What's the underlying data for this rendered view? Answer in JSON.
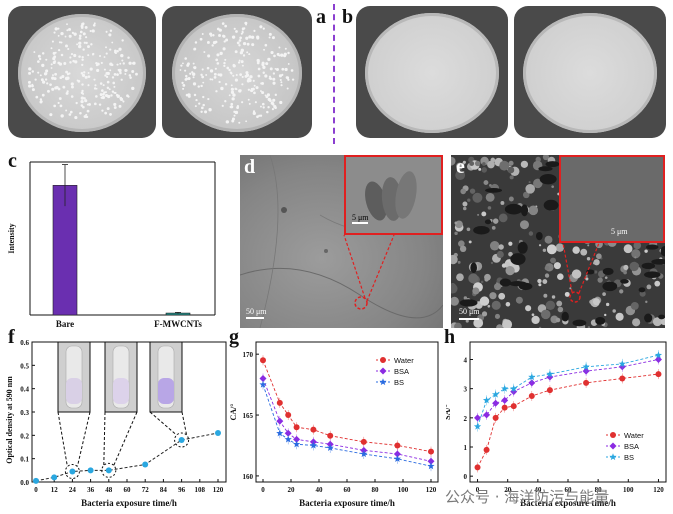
{
  "panel_labels": {
    "a": "a",
    "b": "b",
    "c": "c",
    "d": "d",
    "e": "e",
    "f": "f",
    "g": "g",
    "h": "h"
  },
  "sem_scales": {
    "d_main": "50 μm",
    "d_inset": "5 μm",
    "e_main": "50 μm",
    "e_inset": "5 μm"
  },
  "watermark": "公众号 · 海洋防污与能量",
  "chart_data": [
    {
      "id": "c",
      "type": "bar",
      "categories": [
        "Bare",
        "F-MWCNTs"
      ],
      "values": [
        100,
        1.5
      ],
      "errors": [
        16,
        0.5
      ],
      "ylabel": "Intensity",
      "colors": [
        "#6a2fb0",
        "#1f8f8a"
      ]
    },
    {
      "id": "f",
      "type": "line",
      "x": [
        0,
        12,
        24,
        36,
        48,
        72,
        96,
        120
      ],
      "values": [
        0.005,
        0.02,
        0.045,
        0.05,
        0.05,
        0.075,
        0.18,
        0.21
      ],
      "xticks": [
        "0",
        "12",
        "24",
        "36",
        "48",
        "60",
        "72",
        "84",
        "96",
        "108",
        "120"
      ],
      "yticks": [
        "0.0",
        "0.1",
        "0.2",
        "0.3",
        "0.4",
        "0.5",
        "0.6"
      ],
      "ylim": [
        0,
        0.6
      ],
      "xlim": [
        0,
        120
      ],
      "xlabel": "Bacteria exposure time/h",
      "ylabel": "Optical density at 590 nm",
      "color": "#2aa7e0"
    },
    {
      "id": "g",
      "type": "line",
      "x": [
        0,
        12,
        18,
        24,
        36,
        48,
        72,
        96,
        120
      ],
      "series": [
        {
          "name": "Water",
          "values": [
            169.5,
            166,
            165,
            164,
            163.8,
            163.3,
            162.8,
            162.5,
            162
          ],
          "color": "#e03030",
          "marker": "circle"
        },
        {
          "name": "BSA",
          "values": [
            168,
            164.5,
            163.5,
            163,
            162.8,
            162.6,
            162.1,
            161.8,
            161.2
          ],
          "color": "#8b2be2",
          "marker": "diamond"
        },
        {
          "name": "BS",
          "values": [
            167.5,
            163.5,
            163,
            162.6,
            162.5,
            162.3,
            161.8,
            161.4,
            160.8
          ],
          "color": "#2a6be0",
          "marker": "star"
        }
      ],
      "yticks": [
        "160",
        "165",
        "170"
      ],
      "ylim": [
        159.5,
        171
      ],
      "xticks": [
        "0",
        "20",
        "40",
        "60",
        "80",
        "100",
        "120"
      ],
      "xlim": [
        -5,
        125
      ],
      "xlabel": "Bacteria exposure time/h",
      "ylabel": "CA/°"
    },
    {
      "id": "h",
      "type": "line",
      "x": [
        0,
        6,
        12,
        18,
        24,
        36,
        48,
        72,
        96,
        120
      ],
      "series": [
        {
          "name": "Water",
          "values": [
            0.3,
            0.9,
            2.0,
            2.35,
            2.4,
            2.75,
            2.95,
            3.2,
            3.35,
            3.5
          ],
          "color": "#e03030",
          "marker": "circle"
        },
        {
          "name": "BSA",
          "values": [
            2.0,
            2.1,
            2.5,
            2.6,
            2.9,
            3.2,
            3.4,
            3.6,
            3.75,
            4.0
          ],
          "color": "#8b2be2",
          "marker": "diamond"
        },
        {
          "name": "BS",
          "values": [
            1.7,
            2.6,
            2.8,
            3.0,
            3.0,
            3.4,
            3.5,
            3.75,
            3.85,
            4.15
          ],
          "color": "#2aa7e0",
          "marker": "star"
        }
      ],
      "yticks": [
        "0",
        "1",
        "2",
        "3",
        "4"
      ],
      "ylim": [
        -0.2,
        4.6
      ],
      "xticks": [
        "0",
        "20",
        "40",
        "60",
        "80",
        "100",
        "120"
      ],
      "xlim": [
        -5,
        125
      ],
      "xlabel": "Bacteria exposure time/h",
      "ylabel": "SA/°"
    }
  ]
}
